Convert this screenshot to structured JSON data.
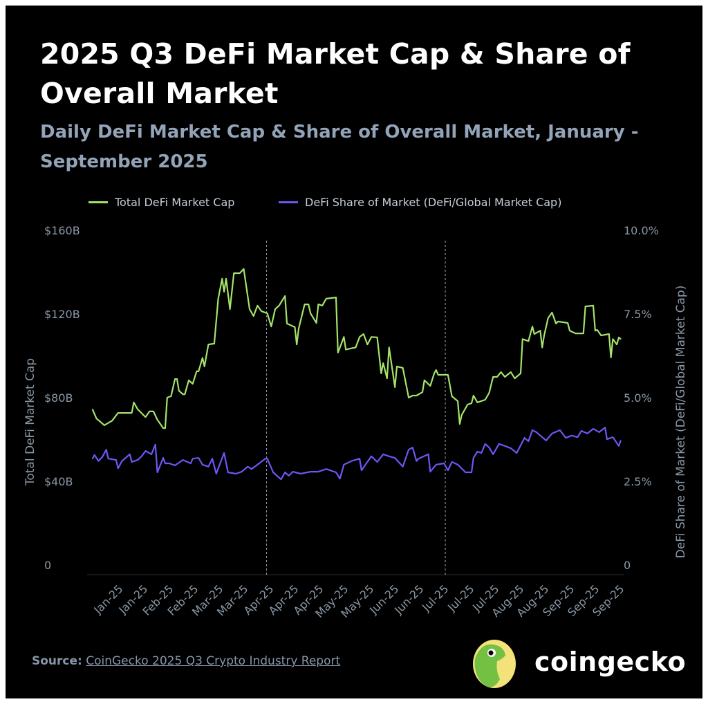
{
  "title": "2025 Q3 DeFi Market Cap & Share of Overall Market",
  "subtitle": "Daily DeFi Market Cap & Share of Overall Market, January - September 2025",
  "source": {
    "label": "Source:",
    "link_text": "CoinGecko 2025 Q3 Crypto Industry Report"
  },
  "brand": {
    "name": "coingecko",
    "logo_icon": "coingecko-gecko-logo"
  },
  "chart_data": {
    "type": "line",
    "title": "2025 Q3 DeFi Market Cap & Share of Overall Market",
    "subtitle": "Daily DeFi Market Cap & Share of Overall Market, January - September 2025",
    "background": "#000000",
    "legend_position": "top",
    "grid": false,
    "ylabel_left": "Total DeFi Market Cap",
    "ylabel_right": "DeFi Share of Market (DeFi/Global Market Cap)",
    "ylim_left": [
      0,
      160
    ],
    "ylim_right": [
      0,
      10
    ],
    "yticks_left": [
      "0",
      "$40B",
      "$80B",
      "$120B",
      "$160B"
    ],
    "yticks_right": [
      "0",
      "2.5%",
      "5.0%",
      "7.5%",
      "10.0%"
    ],
    "xticks": [
      "Jan-25",
      "Jan-25",
      "Feb-25",
      "Feb-25",
      "Mar-25",
      "Mar-25",
      "Apr-25",
      "Apr-25",
      "Apr-25",
      "May-25",
      "May-25",
      "Jun-25",
      "Jun-25",
      "Jul-25",
      "Jul-25",
      "Jul-25",
      "Aug-25",
      "Aug-25",
      "Sep-25",
      "Sep-25",
      "Sep-25"
    ],
    "quarter_markers": [
      "2025-04-01",
      "2025-07-01"
    ],
    "series": [
      {
        "name": "Total DeFi Market Cap",
        "axis": "left",
        "unit": "USD billions",
        "color": "#a5e36b",
        "points": [
          [
            "2025-01-02",
            75.4
          ],
          [
            "2025-01-04",
            71
          ],
          [
            "2025-01-08",
            67.8
          ],
          [
            "2025-01-12",
            70
          ],
          [
            "2025-01-15",
            73.7
          ],
          [
            "2025-01-22",
            73.7
          ],
          [
            "2025-01-23",
            78.7
          ],
          [
            "2025-01-25",
            75.4
          ],
          [
            "2025-01-29",
            71.7
          ],
          [
            "2025-01-31",
            74.4
          ],
          [
            "2025-02-02",
            74.4
          ],
          [
            "2025-02-04",
            70.4
          ],
          [
            "2025-02-07",
            66.4
          ],
          [
            "2025-02-08",
            66.4
          ],
          [
            "2025-02-09",
            81
          ],
          [
            "2025-02-11",
            81.7
          ],
          [
            "2025-02-13",
            89.9
          ],
          [
            "2025-02-14",
            89.9
          ],
          [
            "2025-02-15",
            84.3
          ],
          [
            "2025-02-17",
            82.6
          ],
          [
            "2025-02-18",
            82.6
          ],
          [
            "2025-02-20",
            89.3
          ],
          [
            "2025-02-22",
            87.6
          ],
          [
            "2025-02-24",
            93.6
          ],
          [
            "2025-02-25",
            93.6
          ],
          [
            "2025-02-27",
            100
          ],
          [
            "2025-02-28",
            95.9
          ],
          [
            "2025-03-02",
            106.4
          ],
          [
            "2025-03-05",
            106.8
          ],
          [
            "2025-03-07",
            128.3
          ],
          [
            "2025-03-09",
            137.9
          ],
          [
            "2025-03-10",
            131.6
          ],
          [
            "2025-03-11",
            137.9
          ],
          [
            "2025-03-13",
            123.3
          ],
          [
            "2025-03-15",
            140.5
          ],
          [
            "2025-03-18",
            140.5
          ],
          [
            "2025-03-20",
            142.5
          ],
          [
            "2025-03-23",
            123.3
          ],
          [
            "2025-03-25",
            120
          ],
          [
            "2025-03-27",
            125
          ],
          [
            "2025-03-29",
            122.3
          ],
          [
            "2025-04-01",
            121.3
          ],
          [
            "2025-04-03",
            115
          ],
          [
            "2025-04-05",
            123.3
          ],
          [
            "2025-04-07",
            125
          ],
          [
            "2025-04-10",
            129.6
          ],
          [
            "2025-04-11",
            116.4
          ],
          [
            "2025-04-15",
            114.7
          ],
          [
            "2025-04-16",
            106.4
          ],
          [
            "2025-04-17",
            114
          ],
          [
            "2025-04-20",
            125.6
          ],
          [
            "2025-04-22",
            125.6
          ],
          [
            "2025-04-23",
            121.3
          ],
          [
            "2025-04-26",
            116.7
          ],
          [
            "2025-04-27",
            125.6
          ],
          [
            "2025-04-29",
            125
          ],
          [
            "2025-05-01",
            128.3
          ],
          [
            "2025-05-06",
            128.9
          ],
          [
            "2025-05-07",
            102.5
          ],
          [
            "2025-05-10",
            110
          ],
          [
            "2025-05-11",
            104
          ],
          [
            "2025-05-16",
            105
          ],
          [
            "2025-05-18",
            110
          ],
          [
            "2025-05-20",
            111.4
          ],
          [
            "2025-05-22",
            106.4
          ],
          [
            "2025-05-24",
            110
          ],
          [
            "2025-05-27",
            109.8
          ],
          [
            "2025-05-29",
            92.6
          ],
          [
            "2025-05-30",
            97.5
          ],
          [
            "2025-06-01",
            90.2
          ],
          [
            "2025-06-02",
            105
          ],
          [
            "2025-06-05",
            86
          ],
          [
            "2025-06-06",
            95.9
          ],
          [
            "2025-06-09",
            95.2
          ],
          [
            "2025-06-12",
            81
          ],
          [
            "2025-06-14",
            82
          ],
          [
            "2025-06-16",
            82
          ],
          [
            "2025-06-19",
            83.6
          ],
          [
            "2025-06-20",
            89.3
          ],
          [
            "2025-06-23",
            86.6
          ],
          [
            "2025-06-25",
            92.6
          ],
          [
            "2025-06-26",
            94.2
          ],
          [
            "2025-06-27",
            91.9
          ],
          [
            "2025-07-02",
            91.9
          ],
          [
            "2025-07-04",
            81.7
          ],
          [
            "2025-07-07",
            79.3
          ],
          [
            "2025-07-08",
            68.4
          ],
          [
            "2025-07-09",
            72.7
          ],
          [
            "2025-07-12",
            77.7
          ],
          [
            "2025-07-14",
            78.3
          ],
          [
            "2025-07-15",
            82
          ],
          [
            "2025-07-17",
            78.7
          ],
          [
            "2025-07-21",
            80
          ],
          [
            "2025-07-23",
            83.3
          ],
          [
            "2025-07-25",
            90.9
          ],
          [
            "2025-07-27",
            90.9
          ],
          [
            "2025-07-29",
            93.2
          ],
          [
            "2025-07-31",
            90.9
          ],
          [
            "2025-08-03",
            93.2
          ],
          [
            "2025-08-05",
            90.2
          ],
          [
            "2025-08-08",
            92.6
          ],
          [
            "2025-08-09",
            109
          ],
          [
            "2025-08-12",
            108
          ],
          [
            "2025-08-14",
            115
          ],
          [
            "2025-08-15",
            111.4
          ],
          [
            "2025-08-18",
            113
          ],
          [
            "2025-08-19",
            105
          ],
          [
            "2025-08-20",
            110.7
          ],
          [
            "2025-08-22",
            119
          ],
          [
            "2025-08-24",
            121.7
          ],
          [
            "2025-08-26",
            116.4
          ],
          [
            "2025-08-27",
            117.4
          ],
          [
            "2025-09-01",
            116.7
          ],
          [
            "2025-09-02",
            113
          ],
          [
            "2025-09-05",
            111.7
          ],
          [
            "2025-09-09",
            111.7
          ],
          [
            "2025-09-10",
            124.6
          ],
          [
            "2025-09-14",
            125
          ],
          [
            "2025-09-15",
            113
          ],
          [
            "2025-09-16",
            113.4
          ],
          [
            "2025-09-18",
            110.7
          ],
          [
            "2025-09-22",
            111.4
          ],
          [
            "2025-09-23",
            100.2
          ],
          [
            "2025-09-24",
            109
          ],
          [
            "2025-09-26",
            106.4
          ],
          [
            "2025-09-27",
            109.8
          ],
          [
            "2025-09-28",
            109
          ]
        ]
      },
      {
        "name": "DeFi Share of Market (DeFi/Global Market Cap)",
        "axis": "right",
        "unit": "percent",
        "color": "#6c58f6",
        "points": [
          [
            "2025-01-02",
            3.24
          ],
          [
            "2025-01-03",
            3.35
          ],
          [
            "2025-01-05",
            3.17
          ],
          [
            "2025-01-07",
            3.29
          ],
          [
            "2025-01-09",
            3.51
          ],
          [
            "2025-01-10",
            3.24
          ],
          [
            "2025-01-14",
            3.2
          ],
          [
            "2025-01-15",
            2.95
          ],
          [
            "2025-01-17",
            3.17
          ],
          [
            "2025-01-21",
            3.37
          ],
          [
            "2025-01-22",
            3.14
          ],
          [
            "2025-01-25",
            3.2
          ],
          [
            "2025-01-27",
            3.31
          ],
          [
            "2025-01-29",
            3.47
          ],
          [
            "2025-02-01",
            3.37
          ],
          [
            "2025-02-03",
            3.66
          ],
          [
            "2025-02-04",
            2.83
          ],
          [
            "2025-02-07",
            3.26
          ],
          [
            "2025-02-08",
            3.1
          ],
          [
            "2025-02-10",
            3.1
          ],
          [
            "2025-02-13",
            3.04
          ],
          [
            "2025-02-17",
            3.2
          ],
          [
            "2025-02-21",
            3.1
          ],
          [
            "2025-02-22",
            3.24
          ],
          [
            "2025-02-25",
            3.26
          ],
          [
            "2025-02-27",
            3.06
          ],
          [
            "2025-03-02",
            3.0
          ],
          [
            "2025-03-04",
            3.24
          ],
          [
            "2025-03-06",
            2.79
          ],
          [
            "2025-03-08",
            3.1
          ],
          [
            "2025-03-10",
            3.41
          ],
          [
            "2025-03-12",
            2.83
          ],
          [
            "2025-03-16",
            2.79
          ],
          [
            "2025-03-19",
            2.85
          ],
          [
            "2025-03-22",
            3.0
          ],
          [
            "2025-03-24",
            2.93
          ],
          [
            "2025-03-27",
            3.06
          ],
          [
            "2025-03-31",
            3.24
          ],
          [
            "2025-04-01",
            3.24
          ],
          [
            "2025-04-04",
            2.83
          ],
          [
            "2025-04-08",
            2.62
          ],
          [
            "2025-04-10",
            2.83
          ],
          [
            "2025-04-12",
            2.73
          ],
          [
            "2025-04-14",
            2.85
          ],
          [
            "2025-04-18",
            2.79
          ],
          [
            "2025-04-23",
            2.85
          ],
          [
            "2025-04-27",
            2.85
          ],
          [
            "2025-05-01",
            2.93
          ],
          [
            "2025-05-06",
            2.83
          ],
          [
            "2025-05-08",
            2.64
          ],
          [
            "2025-05-10",
            3.06
          ],
          [
            "2025-05-14",
            3.17
          ],
          [
            "2025-05-18",
            3.24
          ],
          [
            "2025-05-19",
            2.89
          ],
          [
            "2025-05-24",
            3.31
          ],
          [
            "2025-05-27",
            3.14
          ],
          [
            "2025-05-30",
            3.37
          ],
          [
            "2025-06-02",
            3.31
          ],
          [
            "2025-06-05",
            3.26
          ],
          [
            "2025-06-09",
            3.0
          ],
          [
            "2025-06-12",
            3.51
          ],
          [
            "2025-06-14",
            3.57
          ],
          [
            "2025-06-16",
            3.17
          ],
          [
            "2025-06-17",
            3.24
          ],
          [
            "2025-06-22",
            3.37
          ],
          [
            "2025-06-23",
            2.85
          ],
          [
            "2025-06-26",
            3.06
          ],
          [
            "2025-06-30",
            3.1
          ],
          [
            "2025-07-02",
            2.89
          ],
          [
            "2025-07-04",
            3.14
          ],
          [
            "2025-07-07",
            3.06
          ],
          [
            "2025-07-11",
            2.83
          ],
          [
            "2025-07-14",
            2.83
          ],
          [
            "2025-07-15",
            3.26
          ],
          [
            "2025-07-17",
            3.45
          ],
          [
            "2025-07-19",
            3.41
          ],
          [
            "2025-07-21",
            3.68
          ],
          [
            "2025-07-23",
            3.57
          ],
          [
            "2025-07-25",
            3.37
          ],
          [
            "2025-07-28",
            3.68
          ],
          [
            "2025-07-31",
            3.62
          ],
          [
            "2025-08-03",
            3.55
          ],
          [
            "2025-08-06",
            3.41
          ],
          [
            "2025-08-10",
            3.86
          ],
          [
            "2025-08-12",
            3.76
          ],
          [
            "2025-08-14",
            4.09
          ],
          [
            "2025-08-16",
            4.03
          ],
          [
            "2025-08-18",
            3.93
          ],
          [
            "2025-08-21",
            3.78
          ],
          [
            "2025-08-24",
            3.99
          ],
          [
            "2025-08-28",
            4.09
          ],
          [
            "2025-08-31",
            3.86
          ],
          [
            "2025-09-03",
            3.93
          ],
          [
            "2025-09-06",
            3.88
          ],
          [
            "2025-09-08",
            4.07
          ],
          [
            "2025-09-11",
            3.99
          ],
          [
            "2025-09-14",
            4.13
          ],
          [
            "2025-09-17",
            4.03
          ],
          [
            "2025-09-20",
            4.17
          ],
          [
            "2025-09-21",
            3.82
          ],
          [
            "2025-09-24",
            3.88
          ],
          [
            "2025-09-27",
            3.62
          ],
          [
            "2025-09-28",
            3.78
          ]
        ]
      }
    ]
  }
}
